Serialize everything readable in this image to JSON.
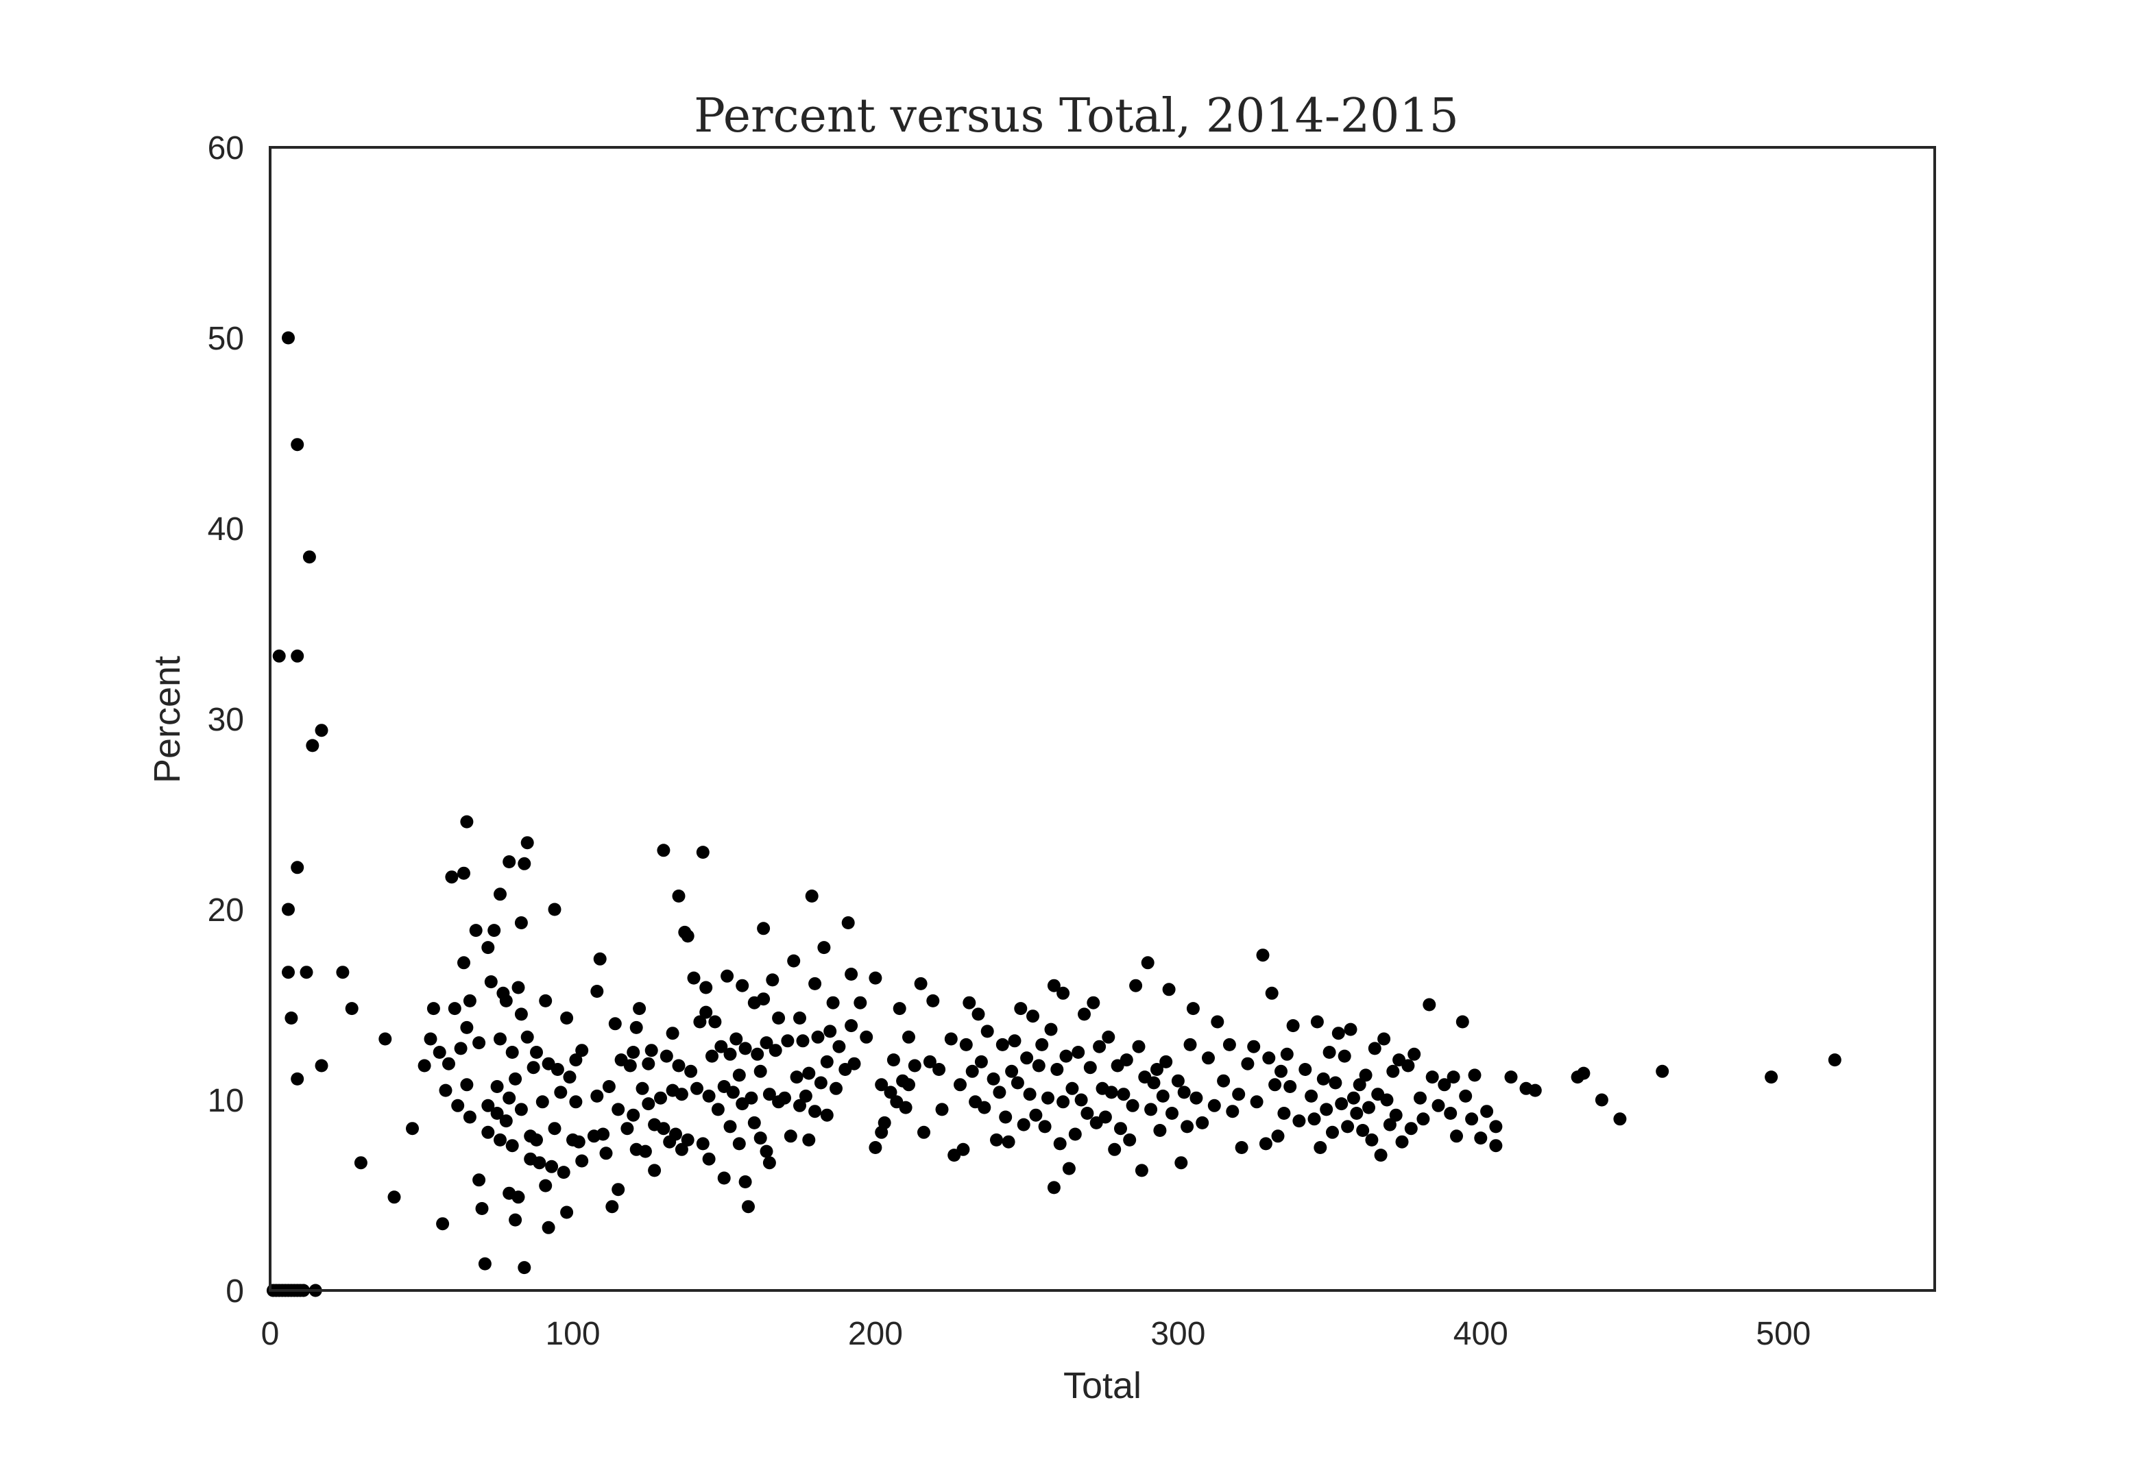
{
  "chart_data": {
    "type": "scatter",
    "title": "Percent versus Total, 2014-2015",
    "xlabel": "Total",
    "ylabel": "Percent",
    "xlim": [
      0,
      550
    ],
    "ylim": [
      0,
      60
    ],
    "xticks": [
      "0",
      "100",
      "200",
      "300",
      "400",
      "500"
    ],
    "yticks": [
      "0",
      "10",
      "20",
      "30",
      "40",
      "50",
      "60"
    ],
    "grid": false,
    "marker_color": "#000000",
    "points": [
      [
        1,
        0
      ],
      [
        2,
        0
      ],
      [
        3,
        0
      ],
      [
        4,
        0
      ],
      [
        5,
        0
      ],
      [
        6,
        0
      ],
      [
        7,
        0
      ],
      [
        8,
        0
      ],
      [
        9,
        0
      ],
      [
        10,
        0
      ],
      [
        11,
        0
      ],
      [
        15,
        0
      ],
      [
        3,
        33.3
      ],
      [
        6,
        50
      ],
      [
        9,
        44.4
      ],
      [
        9,
        33.3
      ],
      [
        13,
        38.5
      ],
      [
        14,
        28.6
      ],
      [
        17,
        29.4
      ],
      [
        6,
        20
      ],
      [
        6,
        16.7
      ],
      [
        7,
        14.3
      ],
      [
        9,
        11.1
      ],
      [
        9,
        22.2
      ],
      [
        12,
        16.7
      ],
      [
        17,
        11.8
      ],
      [
        24,
        16.7
      ],
      [
        27,
        14.8
      ],
      [
        30,
        6.7
      ],
      [
        38,
        13.2
      ],
      [
        41,
        4.9
      ],
      [
        47,
        8.5
      ],
      [
        51,
        11.8
      ],
      [
        53,
        13.2
      ],
      [
        54,
        14.8
      ],
      [
        56,
        12.5
      ],
      [
        57,
        3.5
      ],
      [
        58,
        10.5
      ],
      [
        59,
        11.9
      ],
      [
        60,
        21.7
      ],
      [
        61,
        14.8
      ],
      [
        62,
        9.7
      ],
      [
        63,
        12.7
      ],
      [
        64,
        21.9
      ],
      [
        64,
        17.2
      ],
      [
        65,
        24.6
      ],
      [
        65,
        10.8
      ],
      [
        65,
        13.8
      ],
      [
        66,
        15.2
      ],
      [
        66,
        9.1
      ],
      [
        68,
        18.9
      ],
      [
        69,
        5.8
      ],
      [
        69,
        13
      ],
      [
        70,
        4.3
      ],
      [
        71,
        1.4
      ],
      [
        72,
        18
      ],
      [
        72,
        9.7
      ],
      [
        72,
        8.3
      ],
      [
        73,
        16.2
      ],
      [
        74,
        18.9
      ],
      [
        75,
        9.3
      ],
      [
        75,
        10.7
      ],
      [
        76,
        7.9
      ],
      [
        76,
        20.8
      ],
      [
        76,
        13.2
      ],
      [
        77,
        15.6
      ],
      [
        78,
        15.2
      ],
      [
        78,
        8.9
      ],
      [
        79,
        22.5
      ],
      [
        79,
        10.1
      ],
      [
        79,
        5.1
      ],
      [
        80,
        12.5
      ],
      [
        80,
        7.6
      ],
      [
        81,
        11.1
      ],
      [
        81,
        3.7
      ],
      [
        82,
        4.9
      ],
      [
        82,
        15.9
      ],
      [
        83,
        19.3
      ],
      [
        83,
        14.5
      ],
      [
        83,
        9.5
      ],
      [
        84,
        22.4
      ],
      [
        84,
        1.2
      ],
      [
        85,
        23.5
      ],
      [
        85,
        13.3
      ],
      [
        86,
        8.1
      ],
      [
        86,
        6.9
      ],
      [
        87,
        11.7
      ],
      [
        88,
        7.9
      ],
      [
        88,
        12.5
      ],
      [
        89,
        6.7
      ],
      [
        90,
        9.9
      ],
      [
        91,
        15.2
      ],
      [
        91,
        5.5
      ],
      [
        92,
        11.9
      ],
      [
        92,
        3.3
      ],
      [
        93,
        6.5
      ],
      [
        94,
        20
      ],
      [
        94,
        8.5
      ],
      [
        95,
        11.6
      ],
      [
        96,
        10.4
      ],
      [
        97,
        6.2
      ],
      [
        98,
        14.3
      ],
      [
        98,
        4.1
      ],
      [
        99,
        11.2
      ],
      [
        100,
        7.9
      ],
      [
        101,
        12.1
      ],
      [
        101,
        9.9
      ],
      [
        102,
        7.8
      ],
      [
        103,
        12.6
      ],
      [
        103,
        6.8
      ],
      [
        107,
        8.1
      ],
      [
        108,
        15.7
      ],
      [
        108,
        10.2
      ],
      [
        109,
        17.4
      ],
      [
        110,
        8.2
      ],
      [
        111,
        7.2
      ],
      [
        112,
        10.7
      ],
      [
        113,
        4.4
      ],
      [
        114,
        14.0
      ],
      [
        115,
        9.5
      ],
      [
        115,
        5.3
      ],
      [
        116,
        12.1
      ],
      [
        118,
        8.5
      ],
      [
        119,
        11.8
      ],
      [
        120,
        9.2
      ],
      [
        120,
        12.5
      ],
      [
        121,
        7.4
      ],
      [
        121,
        13.8
      ],
      [
        122,
        14.8
      ],
      [
        123,
        10.6
      ],
      [
        124,
        7.3
      ],
      [
        125,
        11.9
      ],
      [
        125,
        9.8
      ],
      [
        126,
        12.6
      ],
      [
        127,
        6.3
      ],
      [
        127,
        8.7
      ],
      [
        129,
        10.1
      ],
      [
        130,
        23.1
      ],
      [
        130,
        8.5
      ],
      [
        131,
        12.3
      ],
      [
        132,
        7.8
      ],
      [
        133,
        10.5
      ],
      [
        133,
        13.5
      ],
      [
        134,
        8.2
      ],
      [
        135,
        20.7
      ],
      [
        135,
        11.8
      ],
      [
        136,
        7.4
      ],
      [
        136,
        10.3
      ],
      [
        137,
        18.8
      ],
      [
        138,
        18.6
      ],
      [
        138,
        7.9
      ],
      [
        139,
        11.5
      ],
      [
        140,
        16.4
      ],
      [
        141,
        10.6
      ],
      [
        142,
        14.1
      ],
      [
        143,
        23
      ],
      [
        143,
        7.7
      ],
      [
        144,
        15.9
      ],
      [
        144,
        14.6
      ],
      [
        145,
        10.2
      ],
      [
        145,
        6.9
      ],
      [
        146,
        12.3
      ],
      [
        147,
        14.1
      ],
      [
        148,
        9.5
      ],
      [
        149,
        12.8
      ],
      [
        150,
        10.7
      ],
      [
        150,
        5.9
      ],
      [
        151,
        16.5
      ],
      [
        152,
        12.4
      ],
      [
        152,
        8.6
      ],
      [
        153,
        10.4
      ],
      [
        154,
        13.2
      ],
      [
        155,
        11.3
      ],
      [
        155,
        7.7
      ],
      [
        156,
        16.0
      ],
      [
        156,
        9.8
      ],
      [
        157,
        5.7
      ],
      [
        157,
        12.7
      ],
      [
        158,
        4.4
      ],
      [
        159,
        10.1
      ],
      [
        160,
        15.1
      ],
      [
        160,
        8.8
      ],
      [
        161,
        12.4
      ],
      [
        162,
        8.0
      ],
      [
        162,
        11.5
      ],
      [
        163,
        19.0
      ],
      [
        163,
        15.3
      ],
      [
        164,
        13.0
      ],
      [
        164,
        7.3
      ],
      [
        165,
        10.3
      ],
      [
        165,
        6.7
      ],
      [
        166,
        16.3
      ],
      [
        167,
        12.6
      ],
      [
        168,
        14.3
      ],
      [
        168,
        9.9
      ],
      [
        170,
        10.1
      ],
      [
        171,
        13.1
      ],
      [
        172,
        8.1
      ],
      [
        173,
        17.3
      ],
      [
        174,
        11.2
      ],
      [
        175,
        14.3
      ],
      [
        175,
        9.7
      ],
      [
        176,
        13.1
      ],
      [
        177,
        10.2
      ],
      [
        178,
        7.9
      ],
      [
        178,
        11.4
      ],
      [
        179,
        20.7
      ],
      [
        180,
        16.1
      ],
      [
        180,
        9.4
      ],
      [
        181,
        13.3
      ],
      [
        182,
        10.9
      ],
      [
        183,
        18.0
      ],
      [
        184,
        12.0
      ],
      [
        184,
        9.2
      ],
      [
        185,
        13.6
      ],
      [
        186,
        15.1
      ],
      [
        187,
        10.6
      ],
      [
        188,
        12.8
      ],
      [
        190,
        11.6
      ],
      [
        191,
        19.3
      ],
      [
        192,
        16.6
      ],
      [
        192,
        13.9
      ],
      [
        193,
        11.9
      ],
      [
        195,
        15.1
      ],
      [
        197,
        13.3
      ],
      [
        200,
        16.4
      ],
      [
        200,
        7.5
      ],
      [
        202,
        10.8
      ],
      [
        202,
        8.3
      ],
      [
        203,
        8.8
      ],
      [
        205,
        10.4
      ],
      [
        206,
        12.1
      ],
      [
        207,
        9.9
      ],
      [
        208,
        14.8
      ],
      [
        209,
        11.0
      ],
      [
        210,
        9.6
      ],
      [
        211,
        10.8
      ],
      [
        211,
        13.3
      ],
      [
        213,
        11.8
      ],
      [
        215,
        16.1
      ],
      [
        216,
        8.3
      ],
      [
        218,
        12.0
      ],
      [
        219,
        15.2
      ],
      [
        221,
        11.6
      ],
      [
        222,
        9.5
      ],
      [
        225,
        13.2
      ],
      [
        226,
        7.1
      ],
      [
        228,
        10.8
      ],
      [
        229,
        7.4
      ],
      [
        230,
        12.9
      ],
      [
        231,
        15.1
      ],
      [
        232,
        11.5
      ],
      [
        233,
        9.9
      ],
      [
        234,
        14.5
      ],
      [
        235,
        12.0
      ],
      [
        236,
        9.6
      ],
      [
        237,
        13.6
      ],
      [
        239,
        11.1
      ],
      [
        240,
        7.9
      ],
      [
        241,
        10.4
      ],
      [
        242,
        12.9
      ],
      [
        243,
        9.1
      ],
      [
        244,
        7.8
      ],
      [
        245,
        11.5
      ],
      [
        246,
        13.1
      ],
      [
        247,
        10.9
      ],
      [
        248,
        14.8
      ],
      [
        249,
        8.7
      ],
      [
        250,
        12.2
      ],
      [
        251,
        10.3
      ],
      [
        252,
        14.4
      ],
      [
        253,
        9.2
      ],
      [
        254,
        11.8
      ],
      [
        255,
        12.9
      ],
      [
        256,
        8.6
      ],
      [
        257,
        10.1
      ],
      [
        258,
        13.7
      ],
      [
        259,
        5.4
      ],
      [
        259,
        16.0
      ],
      [
        260,
        11.6
      ],
      [
        261,
        7.7
      ],
      [
        262,
        9.9
      ],
      [
        262,
        15.6
      ],
      [
        263,
        12.3
      ],
      [
        264,
        6.4
      ],
      [
        265,
        10.6
      ],
      [
        266,
        8.2
      ],
      [
        267,
        12.5
      ],
      [
        268,
        10.0
      ],
      [
        269,
        14.5
      ],
      [
        270,
        9.3
      ],
      [
        271,
        11.7
      ],
      [
        272,
        15.1
      ],
      [
        273,
        8.8
      ],
      [
        274,
        12.8
      ],
      [
        275,
        10.6
      ],
      [
        276,
        9.1
      ],
      [
        277,
        13.3
      ],
      [
        278,
        10.4
      ],
      [
        279,
        7.4
      ],
      [
        280,
        11.8
      ],
      [
        281,
        8.5
      ],
      [
        282,
        10.3
      ],
      [
        283,
        12.1
      ],
      [
        284,
        7.9
      ],
      [
        285,
        9.7
      ],
      [
        286,
        16.0
      ],
      [
        287,
        12.8
      ],
      [
        288,
        6.3
      ],
      [
        289,
        11.2
      ],
      [
        290,
        17.2
      ],
      [
        291,
        9.5
      ],
      [
        292,
        10.9
      ],
      [
        293,
        11.6
      ],
      [
        294,
        8.4
      ],
      [
        295,
        10.2
      ],
      [
        296,
        12.0
      ],
      [
        297,
        15.8
      ],
      [
        298,
        9.3
      ],
      [
        300,
        11.0
      ],
      [
        301,
        6.7
      ],
      [
        302,
        10.4
      ],
      [
        303,
        8.6
      ],
      [
        304,
        12.9
      ],
      [
        305,
        14.8
      ],
      [
        306,
        10.1
      ],
      [
        308,
        8.8
      ],
      [
        310,
        12.2
      ],
      [
        312,
        9.7
      ],
      [
        313,
        14.1
      ],
      [
        315,
        11.0
      ],
      [
        317,
        12.9
      ],
      [
        318,
        9.4
      ],
      [
        320,
        10.3
      ],
      [
        321,
        7.5
      ],
      [
        323,
        11.9
      ],
      [
        325,
        12.8
      ],
      [
        326,
        9.9
      ],
      [
        328,
        17.6
      ],
      [
        329,
        7.7
      ],
      [
        330,
        12.2
      ],
      [
        331,
        15.6
      ],
      [
        332,
        10.8
      ],
      [
        333,
        8.1
      ],
      [
        334,
        11.5
      ],
      [
        335,
        9.3
      ],
      [
        336,
        12.4
      ],
      [
        337,
        10.7
      ],
      [
        338,
        13.9
      ],
      [
        340,
        8.9
      ],
      [
        342,
        11.6
      ],
      [
        344,
        10.2
      ],
      [
        345,
        9.0
      ],
      [
        346,
        14.1
      ],
      [
        347,
        7.5
      ],
      [
        348,
        11.1
      ],
      [
        349,
        9.5
      ],
      [
        350,
        12.5
      ],
      [
        351,
        8.3
      ],
      [
        352,
        10.9
      ],
      [
        353,
        13.5
      ],
      [
        354,
        9.8
      ],
      [
        355,
        12.3
      ],
      [
        356,
        8.6
      ],
      [
        357,
        13.7
      ],
      [
        358,
        10.1
      ],
      [
        359,
        9.3
      ],
      [
        360,
        10.8
      ],
      [
        361,
        8.4
      ],
      [
        362,
        11.3
      ],
      [
        363,
        9.6
      ],
      [
        364,
        7.9
      ],
      [
        365,
        12.7
      ],
      [
        366,
        10.3
      ],
      [
        367,
        7.1
      ],
      [
        368,
        13.2
      ],
      [
        369,
        10.0
      ],
      [
        370,
        8.7
      ],
      [
        371,
        11.5
      ],
      [
        372,
        9.2
      ],
      [
        373,
        12.1
      ],
      [
        374,
        7.8
      ],
      [
        376,
        11.8
      ],
      [
        377,
        8.5
      ],
      [
        378,
        12.4
      ],
      [
        380,
        10.1
      ],
      [
        381,
        9.0
      ],
      [
        383,
        15.0
      ],
      [
        384,
        11.2
      ],
      [
        386,
        9.7
      ],
      [
        388,
        10.8
      ],
      [
        390,
        9.3
      ],
      [
        391,
        11.2
      ],
      [
        392,
        8.1
      ],
      [
        394,
        14.1
      ],
      [
        395,
        10.2
      ],
      [
        397,
        9.0
      ],
      [
        398,
        11.3
      ],
      [
        400,
        8.0
      ],
      [
        402,
        9.4
      ],
      [
        405,
        7.6
      ],
      [
        405,
        8.6
      ],
      [
        410,
        11.2
      ],
      [
        415,
        10.6
      ],
      [
        418,
        10.5
      ],
      [
        432,
        11.2
      ],
      [
        434,
        11.4
      ],
      [
        440,
        10.0
      ],
      [
        446,
        9.0
      ],
      [
        460,
        11.5
      ],
      [
        496,
        11.2
      ],
      [
        517,
        12.1
      ]
    ]
  }
}
